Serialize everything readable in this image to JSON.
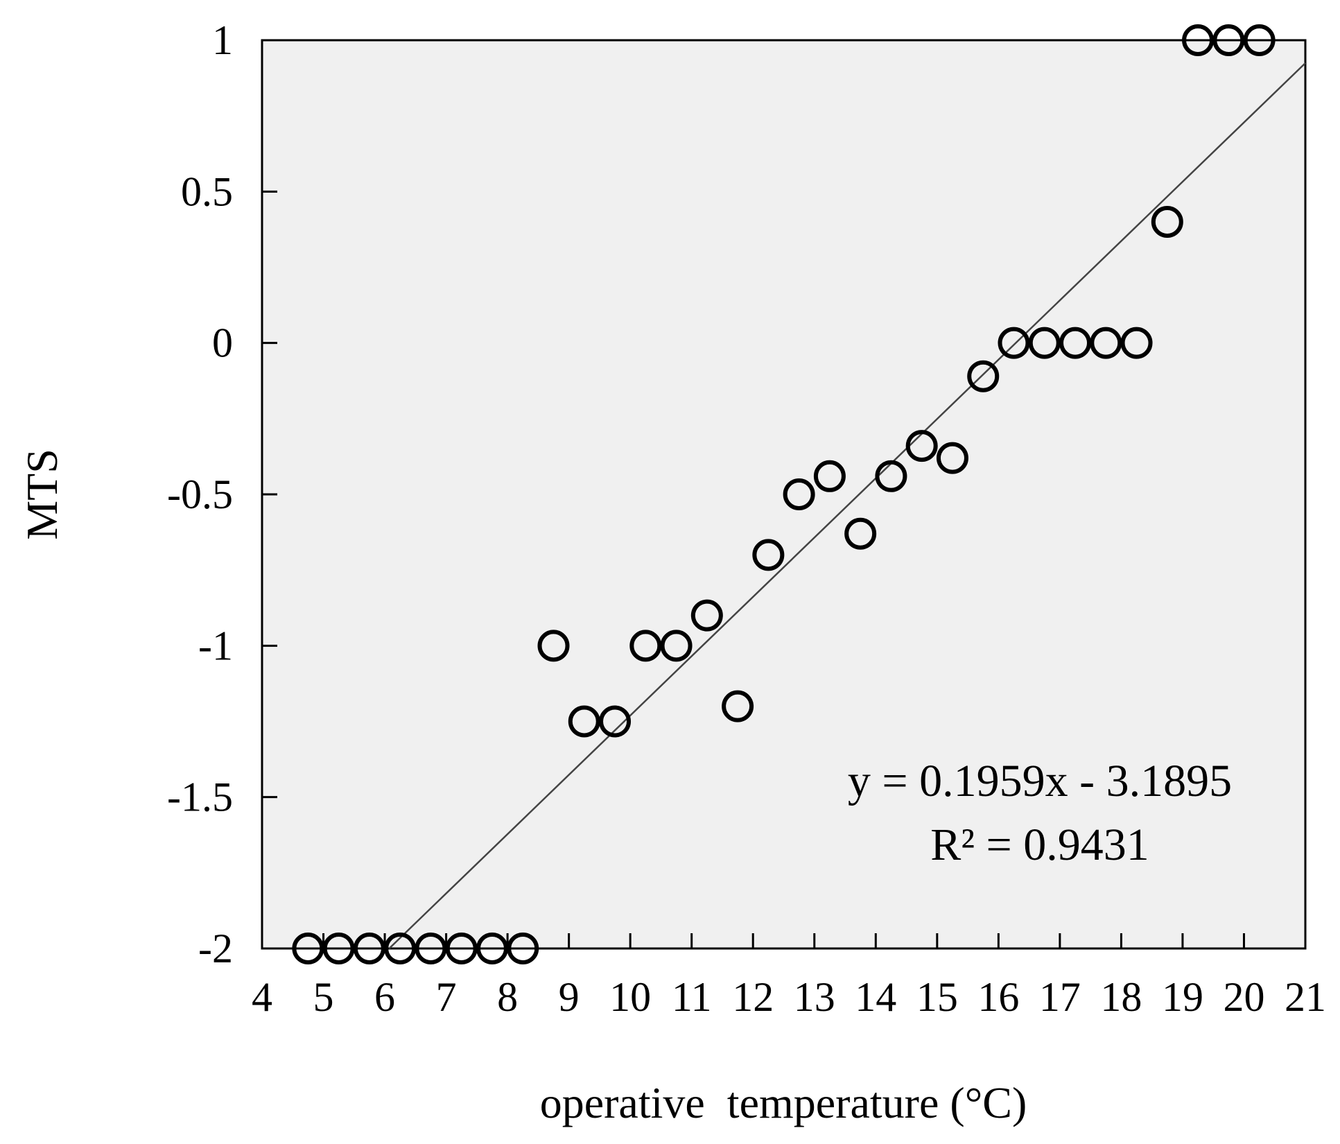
{
  "chart_data": {
    "type": "scatter",
    "xlabel": "operative  temperature (°C)",
    "ylabel": "MTS",
    "xlim": [
      4,
      21
    ],
    "ylim": [
      -2,
      1
    ],
    "xticks": [
      4,
      5,
      6,
      7,
      8,
      9,
      10,
      11,
      12,
      13,
      14,
      15,
      16,
      17,
      18,
      19,
      20,
      21
    ],
    "yticks": [
      1,
      0.5,
      0,
      -0.5,
      -1,
      -1.5,
      -2
    ],
    "ytick_labels": [
      "1",
      "0.5",
      "0",
      "-0.5",
      "-1",
      "-1.5",
      "-2"
    ],
    "grid": false,
    "colors": {
      "plot_bg": "#f0f0f0",
      "marker": "#000000",
      "line": "#444444"
    },
    "points": [
      {
        "x": 4.75,
        "y": -2
      },
      {
        "x": 5.25,
        "y": -2
      },
      {
        "x": 5.75,
        "y": -2
      },
      {
        "x": 6.25,
        "y": -2
      },
      {
        "x": 6.75,
        "y": -2
      },
      {
        "x": 7.25,
        "y": -2
      },
      {
        "x": 7.75,
        "y": -2
      },
      {
        "x": 8.25,
        "y": -2
      },
      {
        "x": 8.75,
        "y": -1
      },
      {
        "x": 9.25,
        "y": -1.25
      },
      {
        "x": 9.75,
        "y": -1.25
      },
      {
        "x": 10.25,
        "y": -1
      },
      {
        "x": 10.75,
        "y": -1
      },
      {
        "x": 11.25,
        "y": -0.9
      },
      {
        "x": 11.75,
        "y": -1.2
      },
      {
        "x": 12.25,
        "y": -0.7
      },
      {
        "x": 12.75,
        "y": -0.5
      },
      {
        "x": 13.25,
        "y": -0.44
      },
      {
        "x": 13.75,
        "y": -0.63
      },
      {
        "x": 14.25,
        "y": -0.44
      },
      {
        "x": 14.75,
        "y": -0.34
      },
      {
        "x": 15.25,
        "y": -0.38
      },
      {
        "x": 15.75,
        "y": -0.11
      },
      {
        "x": 16.25,
        "y": 0
      },
      {
        "x": 16.75,
        "y": 0
      },
      {
        "x": 17.25,
        "y": 0
      },
      {
        "x": 17.75,
        "y": 0
      },
      {
        "x": 18.25,
        "y": 0
      },
      {
        "x": 18.75,
        "y": 0.4
      },
      {
        "x": 19.25,
        "y": 1
      },
      {
        "x": 19.75,
        "y": 1
      },
      {
        "x": 20.25,
        "y": 1
      }
    ],
    "trendline": {
      "slope": 0.1959,
      "intercept": -3.1895
    },
    "annotations": {
      "equation": "y = 0.1959x - 3.1895",
      "r_squared": "R² = 0.9431"
    }
  }
}
